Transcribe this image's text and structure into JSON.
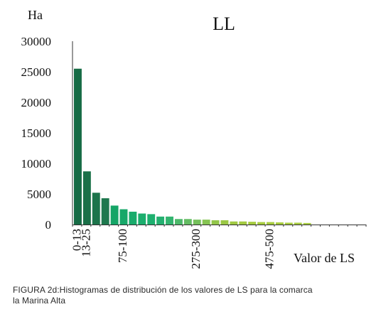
{
  "chart_data": {
    "type": "bar",
    "title": "LL",
    "ylabel": "Ha",
    "xlabel": "Valor de LS",
    "ylim": [
      0,
      30000
    ],
    "yticks": [
      0,
      5000,
      10000,
      15000,
      20000,
      25000,
      30000
    ],
    "xtick_labels": [
      {
        "text": "0-13",
        "index": 0
      },
      {
        "text": "13-25",
        "index": 1
      },
      {
        "text": "75-100",
        "index": 5
      },
      {
        "text": "275-300",
        "index": 13
      },
      {
        "text": "475-500",
        "index": 21
      }
    ],
    "bins": 32,
    "values": [
      25500,
      8700,
      5200,
      4300,
      3100,
      2500,
      2100,
      1800,
      1700,
      1300,
      1300,
      900,
      900,
      800,
      800,
      700,
      700,
      500,
      500,
      450,
      400,
      400,
      350,
      300,
      300,
      250,
      0,
      0,
      0,
      0,
      0,
      0
    ],
    "colors": [
      "#166b45",
      "#1a7048",
      "#1c744b",
      "#1e784e",
      "#15a567",
      "#17a869",
      "#19ab6b",
      "#1bae6d",
      "#1db06f",
      "#24b070",
      "#33b46f",
      "#4db86a",
      "#64bc63",
      "#75c05b",
      "#86c452",
      "#93c64a",
      "#9bc845",
      "#a0c942",
      "#a3ca40",
      "#a5cb3f",
      "#a6cc3f",
      "#a7cc3f",
      "#a7cc3f",
      "#a7cc3f",
      "#a7cc3f",
      "#a7cc3f",
      "#a7cc3f",
      "#a7cc3f",
      "#a7cc3f",
      "#a7cc3f",
      "#a7cc3f",
      "#a7cc3f"
    ],
    "grid": false,
    "legend": "none"
  },
  "caption": {
    "line1": "FIGURA 2d:Histogramas de distribución de los valores de LS para la comarca",
    "line2": "la Marina Alta"
  }
}
